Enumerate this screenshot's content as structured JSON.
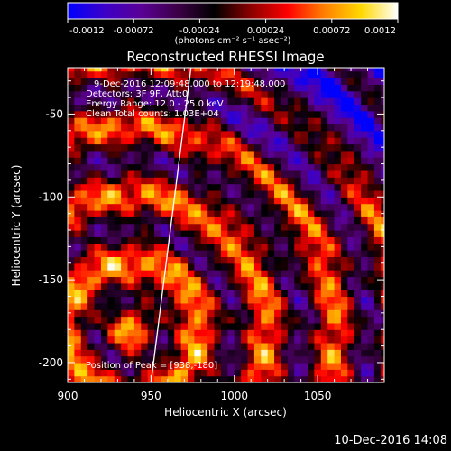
{
  "chart_data": {
    "type": "heatmap",
    "title": "Reconstructed RHESSI Image",
    "xlabel": "Heliocentric X (arcsec)",
    "ylabel": "Heliocentric Y (arcsec)",
    "xlim": [
      900,
      1090
    ],
    "ylim": [
      -212,
      -22
    ],
    "x_ticks": [
      900,
      950,
      1000,
      1050
    ],
    "y_ticks": [
      -200,
      -150,
      -100,
      -50
    ],
    "colorbar": {
      "min": -0.0012,
      "max": 0.0012,
      "ticks": [
        "-0.0012",
        "-0.00072",
        "-0.00024",
        "0.00024",
        "0.00072",
        "0.0012"
      ],
      "unit_label": "(photons cm⁻² s⁻¹ asec⁻²)",
      "colormap": [
        "#0000ff",
        "#3b00c8",
        "#5a0096",
        "#3c0046",
        "#000000",
        "#8c0000",
        "#ff0000",
        "#ff8000",
        "#ffd800",
        "#ffffff"
      ]
    },
    "annotations": [
      "9-Dec-2016 12:09:48.000 to 12:19:48.000",
      "Detectors: 3F 9F, Att:0",
      "Energy Range: 12.0 - 25.0 keV",
      "Clean    Total counts: 1.03E+04"
    ],
    "peak_label": "Position of Peak = [938,-180]",
    "limb": {
      "x": [
        950,
        974
      ],
      "y": [
        -212,
        -22
      ]
    }
  },
  "footer_timestamp": "10-Dec-2016 14:08"
}
